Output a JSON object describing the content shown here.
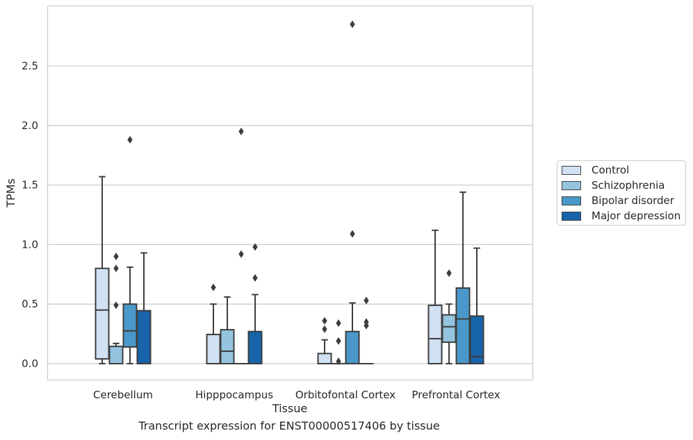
{
  "chart_data": {
    "type": "box",
    "xlabel": "Tissue",
    "ylabel": "TPMs",
    "ylim": [
      -0.14,
      2.98
    ],
    "yticks": [
      "0.0",
      "0.5",
      "1.0",
      "1.5",
      "2.0",
      "2.5"
    ],
    "ytick_values": [
      0,
      0.5,
      1.0,
      1.5,
      2.0,
      2.5
    ],
    "grid": true,
    "categories": [
      "Cerebellum",
      "Hipppocampus",
      "Orbitofontal Cortex",
      "Prefrontal Cortex"
    ],
    "legend_position": "right",
    "series": [
      {
        "name": "Control",
        "color": "#d0e1f2",
        "boxes": [
          {
            "min": 0.0,
            "q1": 0.04,
            "median": 0.45,
            "q3": 0.8,
            "max": 1.57,
            "outliers": []
          },
          {
            "min": 0.0,
            "q1": 0.0,
            "median": 0.0,
            "q3": 0.245,
            "max": 0.5,
            "outliers": [
              0.64
            ]
          },
          {
            "min": 0.0,
            "q1": 0.0,
            "median": 0.0,
            "q3": 0.085,
            "max": 0.2,
            "outliers": [
              0.29,
              0.36
            ]
          },
          {
            "min": 0.0,
            "q1": 0.0,
            "median": 0.21,
            "q3": 0.49,
            "max": 1.12,
            "outliers": []
          }
        ]
      },
      {
        "name": "Schizophrenia",
        "color": "#94c4df",
        "boxes": [
          {
            "min": 0.0,
            "q1": 0.0,
            "median": 0.0,
            "q3": 0.145,
            "max": 0.17,
            "outliers": [
              0.49,
              0.8,
              0.9
            ]
          },
          {
            "min": 0.0,
            "q1": 0.0,
            "median": 0.105,
            "q3": 0.285,
            "max": 0.56,
            "outliers": []
          },
          {
            "min": 0.0,
            "q1": 0.0,
            "median": 0.0,
            "q3": 0.0,
            "max": 0.0,
            "outliers": [
              0.02,
              0.19,
              0.34
            ]
          },
          {
            "min": 0.0,
            "q1": 0.18,
            "median": 0.31,
            "q3": 0.41,
            "max": 0.5,
            "outliers": [
              0.76
            ]
          }
        ]
      },
      {
        "name": "Bipolar disorder",
        "color": "#4a98c9",
        "boxes": [
          {
            "min": 0.0,
            "q1": 0.14,
            "median": 0.275,
            "q3": 0.5,
            "max": 0.81,
            "outliers": [
              1.88
            ]
          },
          {
            "min": 0.0,
            "q1": 0.0,
            "median": 0.0,
            "q3": 0.0,
            "max": 0.0,
            "outliers": [
              0.92,
              1.95
            ]
          },
          {
            "min": 0.0,
            "q1": 0.0,
            "median": 0.0,
            "q3": 0.27,
            "max": 0.51,
            "outliers": [
              1.09,
              2.85
            ]
          },
          {
            "min": 0.0,
            "q1": 0.0,
            "median": 0.375,
            "q3": 0.635,
            "max": 1.44,
            "outliers": []
          }
        ]
      },
      {
        "name": "Major depression",
        "color": "#1764ab",
        "boxes": [
          {
            "min": 0.0,
            "q1": 0.0,
            "median": 0.0,
            "q3": 0.445,
            "max": 0.93,
            "outliers": []
          },
          {
            "min": 0.0,
            "q1": 0.0,
            "median": 0.0,
            "q3": 0.27,
            "max": 0.58,
            "outliers": [
              0.72,
              0.98
            ]
          },
          {
            "min": 0.0,
            "q1": 0.0,
            "median": 0.0,
            "q3": 0.0,
            "max": 0.0,
            "outliers": [
              0.32,
              0.35,
              0.53
            ]
          },
          {
            "min": 0.0,
            "q1": 0.0,
            "median": 0.06,
            "q3": 0.4,
            "max": 0.97,
            "outliers": []
          }
        ]
      }
    ]
  },
  "caption": "Transcript expression for ENST00000517406 by tissue"
}
